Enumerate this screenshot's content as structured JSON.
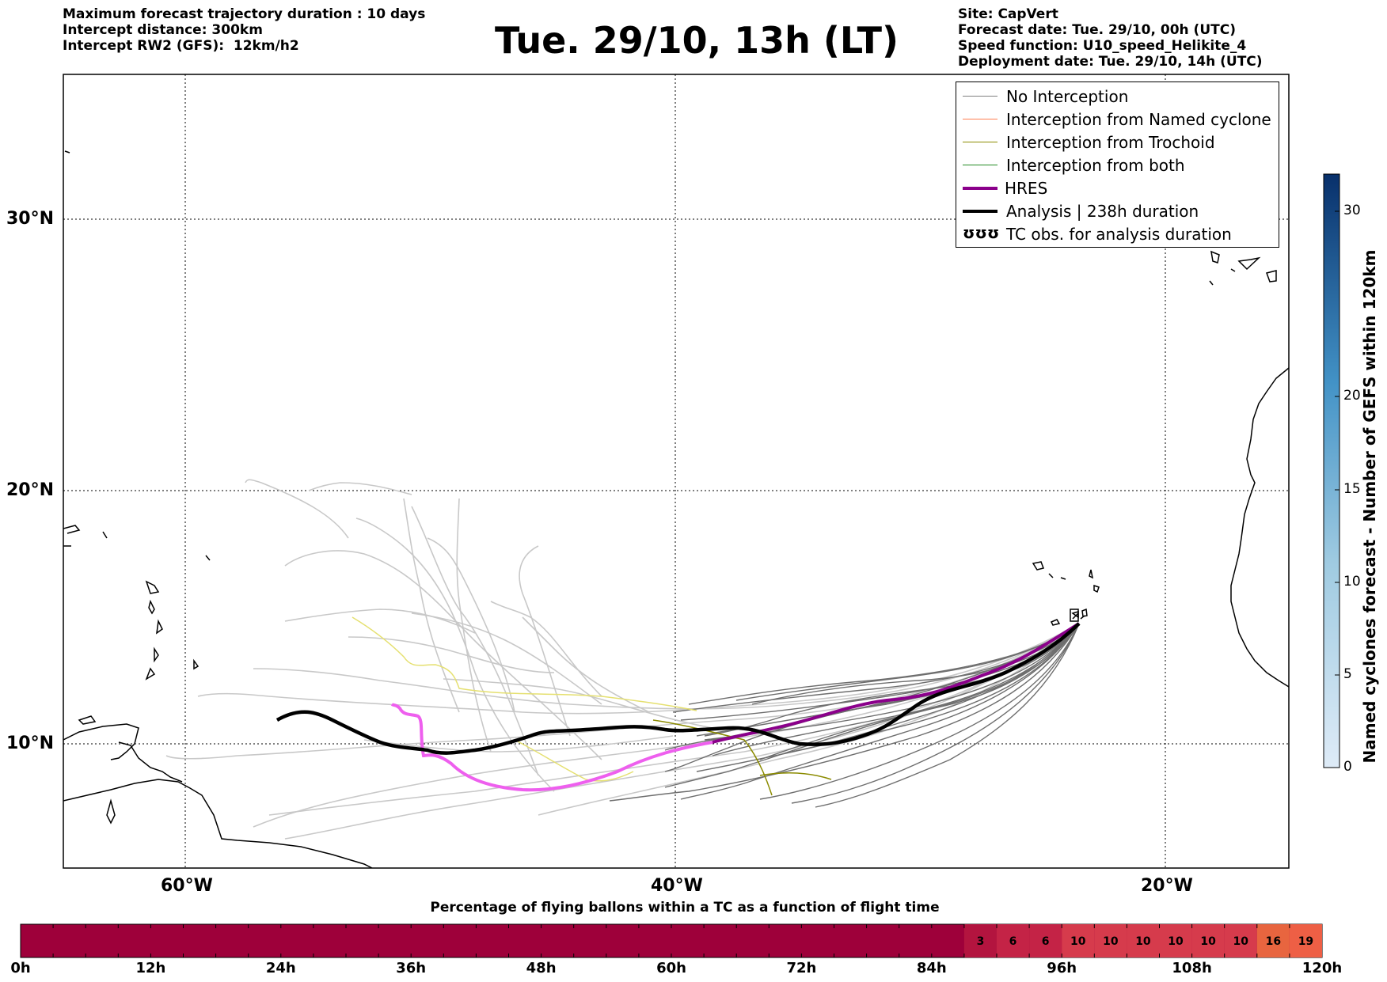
{
  "header_left": [
    "Maximum forecast trajectory duration : 10 days",
    "Intercept distance: 300km",
    "Intercept RW2 (GFS):  12km/h2"
  ],
  "title": "Tue. 29/10, 13h (LT)",
  "header_right": [
    "Site: CapVert",
    "Forecast date: Tue. 29/10, 00h (UTC)",
    "Speed function: U10_speed_Helikite_4",
    "Deployment date: Tue. 29/10, 14h (UTC)"
  ],
  "map": {
    "lat_labels": [
      "30°N",
      "20°N",
      "10°N"
    ],
    "lon_labels": [
      "60°W",
      "40°W",
      "20°W"
    ],
    "grid": "dotted"
  },
  "legend": [
    {
      "label": "No Interception",
      "color": "#808080"
    },
    {
      "label": "Interception from Named cyclone",
      "color": "#ff7f50"
    },
    {
      "label": "Interception from Trochoid",
      "color": "#8b8b00"
    },
    {
      "label": "Interception from both",
      "color": "#228b22"
    },
    {
      "label": "HRES",
      "color": "#8b008b"
    },
    {
      "label": "Analysis | 238h duration",
      "color": "#000000"
    },
    {
      "label": "TC obs. for analysis duration",
      "symbol": "ʊʊʊ"
    }
  ],
  "colorbar": {
    "label": "Named cyclones forecast - Number of GEFS within 120km",
    "ticks": [
      "0",
      "5",
      "10",
      "15",
      "20",
      "30"
    ],
    "range": [
      0,
      32
    ]
  },
  "progress_bar": {
    "title": "Percentage of flying ballons within a TC as a function of flight time",
    "tick_labels": [
      "0h",
      "12h",
      "24h",
      "36h",
      "48h",
      "60h",
      "72h",
      "84h",
      "96h",
      "108h",
      "120h"
    ],
    "segment_values": [
      "3",
      "6",
      "6",
      "10",
      "10",
      "10",
      "10",
      "10",
      "10",
      "16",
      "19"
    ],
    "base_color": "#9e003a"
  }
}
